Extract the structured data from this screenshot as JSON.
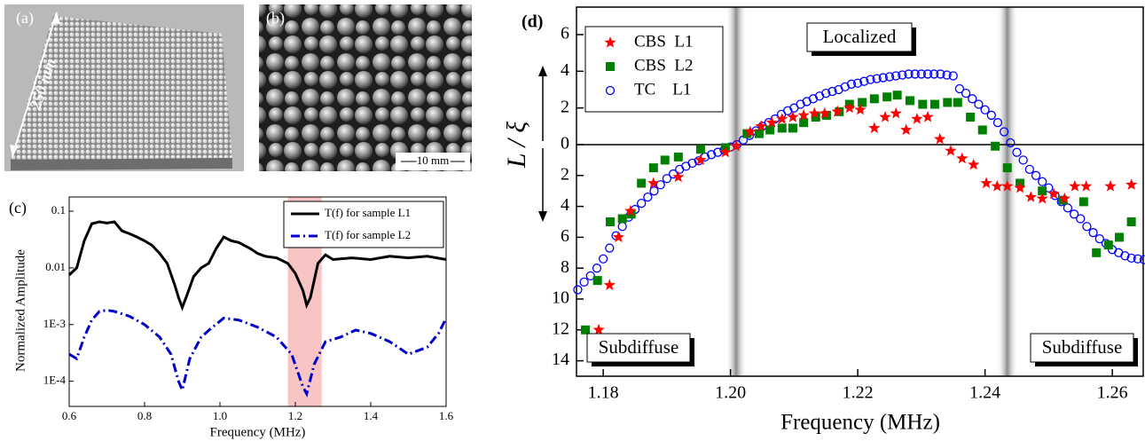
{
  "photos": [
    {
      "label": "(a)",
      "annotation": "250 mm"
    },
    {
      "label": "(b)",
      "annotation": "10 mm"
    }
  ],
  "chart_data": [
    {
      "type": "line",
      "panel_label": "(c)",
      "xlabel": "Frequency (MHz)",
      "ylabel": "Normalized Amplitude",
      "xlim": [
        0.6,
        1.6
      ],
      "xticks": [
        0.6,
        0.8,
        {
          "value": 1,
          "label": "1.0"
        },
        1.2,
        1.4,
        1.6
      ],
      "ylim": [
        3.6e-05,
        0.178
      ],
      "yticks": [
        0.1,
        0.01,
        {
          "value": 0.001,
          "label": "1E-3"
        },
        {
          "value": 0.0001,
          "label": "1E-4"
        }
      ],
      "log_y": true,
      "legend": "upper right",
      "shaded_x": [
        1.18,
        1.27
      ],
      "shaded_color": "#f8c4c4",
      "series": [
        {
          "name": "T(f) for sample L1",
          "color": "#000000",
          "dash": "solid",
          "x": [
            0.6,
            0.62,
            0.64,
            0.66,
            0.68,
            0.7,
            0.72,
            0.74,
            0.76,
            0.78,
            0.8,
            0.82,
            0.84,
            0.86,
            0.88,
            0.89,
            0.9,
            0.91,
            0.93,
            0.95,
            0.97,
            0.99,
            1.01,
            1.03,
            1.05,
            1.08,
            1.1,
            1.12,
            1.15,
            1.18,
            1.2,
            1.22,
            1.23,
            1.24,
            1.26,
            1.28,
            1.3,
            1.35,
            1.4,
            1.45,
            1.5,
            1.55,
            1.6
          ],
          "values": [
            0.0075,
            0.01,
            0.03,
            0.06,
            0.065,
            0.062,
            0.065,
            0.045,
            0.04,
            0.035,
            0.03,
            0.025,
            0.018,
            0.012,
            0.005,
            0.003,
            0.002,
            0.003,
            0.007,
            0.01,
            0.012,
            0.022,
            0.035,
            0.03,
            0.028,
            0.022,
            0.018,
            0.016,
            0.015,
            0.012,
            0.008,
            0.004,
            0.0022,
            0.003,
            0.012,
            0.017,
            0.014,
            0.015,
            0.014,
            0.016,
            0.015,
            0.016,
            0.014
          ]
        },
        {
          "name": "T(f) for sample L2",
          "color": "#0000cc",
          "dash": "dashdot",
          "x": [
            0.6,
            0.62,
            0.64,
            0.66,
            0.68,
            0.7,
            0.72,
            0.76,
            0.8,
            0.84,
            0.87,
            0.89,
            0.9,
            0.92,
            0.95,
            0.98,
            1.01,
            1.05,
            1.1,
            1.15,
            1.19,
            1.22,
            1.23,
            1.25,
            1.28,
            1.32,
            1.36,
            1.4,
            1.45,
            1.5,
            1.55,
            1.58,
            1.6
          ],
          "values": [
            0.0003,
            0.00025,
            0.0006,
            0.0012,
            0.0017,
            0.0018,
            0.0017,
            0.0014,
            0.001,
            0.0006,
            0.0003,
            0.0001,
            7e-05,
            0.00025,
            0.0006,
            0.0009,
            0.0013,
            0.0012,
            0.0009,
            0.0006,
            0.0003,
            8e-05,
            6e-05,
            0.0002,
            0.0005,
            0.0006,
            0.0008,
            0.0007,
            0.0005,
            0.0003,
            0.0004,
            0.0007,
            0.0013
          ]
        }
      ]
    },
    {
      "type": "scatter",
      "panel_label": "(d)",
      "xlabel": "Frequency (MHz)",
      "ylabel": "L / ξ",
      "xlim": [
        1.1758,
        1.265
      ],
      "xticks": [
        1.18,
        {
          "value": 1.2,
          "label": "1.20"
        },
        1.22,
        1.24,
        1.26
      ],
      "ylim": [
        -15,
        7.5
      ],
      "yticks": [
        {
          "value": -14,
          "label": "14"
        },
        {
          "value": -12,
          "label": "12"
        },
        {
          "value": -10,
          "label": "10"
        },
        {
          "value": -8,
          "label": "8"
        },
        {
          "value": -6,
          "label": "6"
        },
        {
          "value": -4,
          "label": "4"
        },
        {
          "value": -2,
          "label": "2"
        },
        0,
        2,
        4,
        6
      ],
      "zero_line": true,
      "shaded_x": [
        1.2009,
        1.2435
      ],
      "annotations": [
        "Localized",
        "Subdiffuse",
        "Subdiffuse"
      ],
      "legend": "upper left",
      "series": [
        {
          "name": "CBS  L1",
          "color": "#ff0000",
          "marker": "star",
          "x": [
            1.1793,
            1.181,
            1.1824,
            1.1843,
            1.1879,
            1.1918,
            1.1953,
            1.1992,
            1.2009,
            1.2031,
            1.2048,
            1.2065,
            1.2081,
            1.2098,
            1.2115,
            1.2132,
            1.2148,
            1.2168,
            1.2187,
            1.2204,
            1.2226,
            1.2243,
            1.226,
            1.2276,
            1.2293,
            1.231,
            1.2329,
            1.2346,
            1.2364,
            1.2382,
            1.2402,
            1.2419,
            1.2435,
            1.2455,
            1.2472,
            1.249,
            1.2508,
            1.2525,
            1.2541,
            1.2559,
            1.2597,
            1.263
          ],
          "values": [
            -12,
            -9.1,
            -6,
            -4.3,
            -2.5,
            -2.1,
            -1,
            -0.5,
            -0.1,
            0.7,
            1,
            1.2,
            1.4,
            1.5,
            1.6,
            1.7,
            1.7,
            1.8,
            2,
            1.9,
            0.9,
            1.5,
            1.7,
            0.8,
            1.4,
            1.5,
            0.3,
            -0.4,
            -0.9,
            -1.3,
            -2.5,
            -2.7,
            -2.7,
            -2.8,
            -3.4,
            -3.5,
            -3.2,
            -3.5,
            -2.7,
            -2.7,
            -2.7,
            -2.6
          ]
        },
        {
          "name": "CBS  L2",
          "color": "#008000",
          "marker": "square",
          "x": [
            1.1772,
            1.1791,
            1.1811,
            1.183,
            1.1844,
            1.186,
            1.1879,
            1.1897,
            1.1918,
            1.1953,
            1.1992,
            1.2026,
            1.2045,
            1.2062,
            1.2081,
            1.2098,
            1.2115,
            1.2134,
            1.2151,
            1.2171,
            1.2187,
            1.2207,
            1.2226,
            1.2246,
            1.2262,
            1.2282,
            1.2302,
            1.2321,
            1.2341,
            1.2357,
            1.2377,
            1.2396,
            1.2416,
            1.2435,
            1.2455,
            1.249,
            1.2522,
            1.2555,
            1.2575,
            1.2594,
            1.2611,
            1.263
          ],
          "values": [
            -12,
            -8.8,
            -5,
            -4.8,
            -4.5,
            -2.5,
            -1.5,
            -1,
            -0.8,
            -0.3,
            -0.2,
            0.6,
            0.6,
            0.8,
            0.9,
            0.9,
            1.2,
            1.5,
            1.6,
            1.8,
            2.2,
            2.3,
            2.5,
            2.6,
            2.7,
            2.4,
            2.2,
            2.2,
            2.3,
            2.3,
            1.5,
            0.8,
            -0.1,
            -1.5,
            -2.5,
            -3,
            -3.6,
            -3.7,
            -7,
            -6.5,
            -6,
            -5
          ]
        },
        {
          "name": "TC    L1",
          "color": "#0000ff",
          "marker": "open-circle",
          "x": [
            1.176,
            1.177,
            1.178,
            1.179,
            1.18,
            1.181,
            1.182,
            1.183,
            1.184,
            1.185,
            1.186,
            1.187,
            1.188,
            1.189,
            1.19,
            1.191,
            1.192,
            1.193,
            1.194,
            1.195,
            1.196,
            1.197,
            1.198,
            1.199,
            1.2,
            1.201,
            1.202,
            1.203,
            1.204,
            1.205,
            1.206,
            1.207,
            1.208,
            1.209,
            1.21,
            1.211,
            1.212,
            1.213,
            1.214,
            1.215,
            1.216,
            1.217,
            1.218,
            1.219,
            1.22,
            1.221,
            1.222,
            1.223,
            1.224,
            1.225,
            1.226,
            1.227,
            1.228,
            1.229,
            1.23,
            1.231,
            1.232,
            1.233,
            1.234,
            1.235,
            1.236,
            1.237,
            1.238,
            1.239,
            1.24,
            1.241,
            1.242,
            1.243,
            1.244,
            1.245,
            1.246,
            1.247,
            1.248,
            1.249,
            1.25,
            1.251,
            1.252,
            1.253,
            1.254,
            1.255,
            1.256,
            1.257,
            1.258,
            1.259,
            1.26,
            1.261,
            1.262,
            1.263,
            1.264,
            1.265
          ],
          "values": [
            -9.4,
            -8.9,
            -8.5,
            -8,
            -7.4,
            -6.7,
            -5.9,
            -5.3,
            -4.7,
            -4.2,
            -3.8,
            -3.4,
            -3,
            -2.6,
            -2.2,
            -1.9,
            -1.6,
            -1.4,
            -1.2,
            -1.05,
            -0.8,
            -0.65,
            -0.5,
            -0.35,
            -0.15,
            0,
            0.25,
            0.5,
            0.75,
            1,
            1.2,
            1.4,
            1.65,
            1.85,
            2,
            2.2,
            2.35,
            2.5,
            2.65,
            2.8,
            2.9,
            3,
            3.15,
            3.3,
            3.35,
            3.45,
            3.55,
            3.6,
            3.65,
            3.7,
            3.75,
            3.8,
            3.85,
            3.85,
            3.85,
            3.85,
            3.85,
            3.85,
            3.8,
            3.75,
            3.05,
            2.8,
            2.5,
            2.2,
            1.9,
            1.6,
            1.2,
            0.7,
            0.1,
            -0.5,
            -1,
            -1.6,
            -2,
            -2.4,
            -2.8,
            -3.3,
            -3.7,
            -4.1,
            -4.5,
            -4.8,
            -5.3,
            -5.7,
            -6.1,
            -6.4,
            -6.8,
            -7,
            -7.2,
            -7.35,
            -7.4,
            -7.45
          ]
        }
      ]
    }
  ]
}
